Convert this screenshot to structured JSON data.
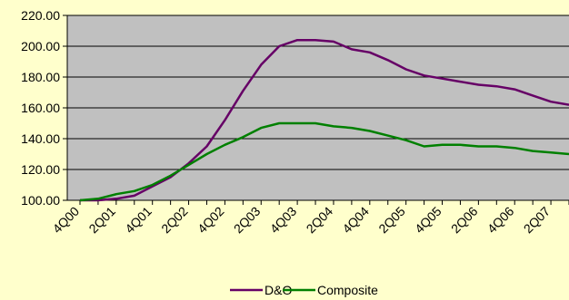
{
  "chart_data": {
    "type": "line",
    "title": "",
    "xlabel": "",
    "ylabel": "",
    "ylim": [
      100,
      220
    ],
    "yticks": [
      "100.00",
      "120.00",
      "140.00",
      "160.00",
      "180.00",
      "200.00",
      "220.00"
    ],
    "grid": "horizontal",
    "legend": "bottom",
    "plot_background": "#c0c0c0",
    "x_tick_labels": [
      "4Q00",
      "2Q01",
      "4Q01",
      "2Q02",
      "4Q02",
      "2Q03",
      "4Q03",
      "2Q04",
      "4Q04",
      "2Q05",
      "4Q05",
      "2Q06",
      "4Q06",
      "2Q07"
    ],
    "x": [
      "4Q00",
      "1Q01",
      "2Q01",
      "3Q01",
      "4Q01",
      "1Q02",
      "2Q02",
      "3Q02",
      "4Q02",
      "1Q03",
      "2Q03",
      "3Q03",
      "4Q03",
      "1Q04",
      "2Q04",
      "3Q04",
      "4Q04",
      "1Q05",
      "2Q05",
      "3Q05",
      "4Q05",
      "1Q06",
      "2Q06",
      "3Q06",
      "4Q06",
      "1Q07",
      "2Q07",
      "3Q07"
    ],
    "series": [
      {
        "name": "D&O",
        "color": "#660066",
        "values": [
          100,
          100,
          101,
          103,
          109,
          115,
          124,
          135,
          152,
          171,
          188,
          200,
          204,
          204,
          203,
          198,
          196,
          191,
          185,
          181,
          179,
          177,
          175,
          174,
          172,
          168,
          164,
          162
        ]
      },
      {
        "name": "Composite",
        "color": "#008000",
        "values": [
          100,
          101,
          104,
          106,
          110,
          116,
          123,
          130,
          136,
          141,
          147,
          150,
          150,
          150,
          148,
          147,
          145,
          142,
          139,
          135,
          136,
          136,
          135,
          135,
          134,
          132,
          131,
          130
        ]
      }
    ]
  }
}
